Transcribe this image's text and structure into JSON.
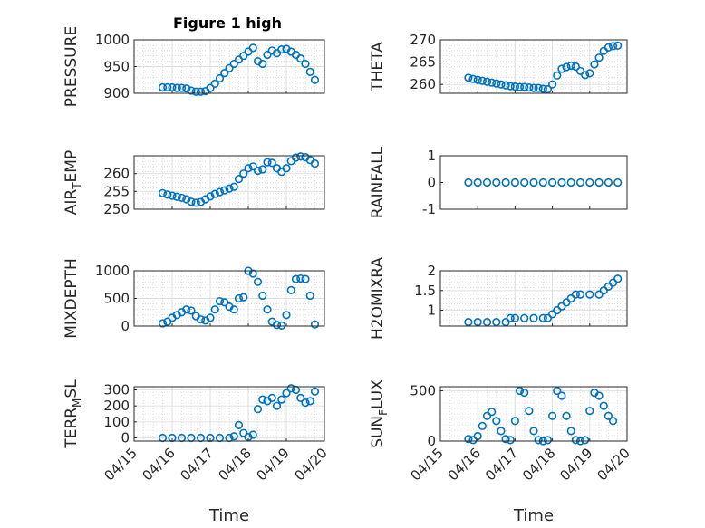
{
  "figure": {
    "title": "Figure 1 high",
    "marker_color": "#0072BD"
  },
  "chart_data": [
    {
      "type": "scatter",
      "ylabel": "PRESSURE",
      "xlabel": "",
      "xlim": [
        "04/15",
        "04/20"
      ],
      "ylim": [
        900,
        1000
      ],
      "yticks": [
        "900",
        "950",
        "1000"
      ],
      "grid": true,
      "points": [
        [
          "04/15 18:00",
          911
        ],
        [
          "04/15 21:00",
          911
        ],
        [
          "04/16 00:00",
          911
        ],
        [
          "04/16 03:00",
          910
        ],
        [
          "04/16 06:00",
          910
        ],
        [
          "04/16 09:00",
          909
        ],
        [
          "04/16 12:00",
          905
        ],
        [
          "04/16 15:00",
          903
        ],
        [
          "04/16 18:00",
          903
        ],
        [
          "04/16 21:00",
          904
        ],
        [
          "04/17 00:00",
          910
        ],
        [
          "04/17 03:00",
          918
        ],
        [
          "04/17 06:00",
          928
        ],
        [
          "04/17 09:00",
          938
        ],
        [
          "04/17 12:00",
          947
        ],
        [
          "04/17 15:00",
          955
        ],
        [
          "04/17 18:00",
          963
        ],
        [
          "04/17 21:00",
          970
        ],
        [
          "04/18 00:00",
          978
        ],
        [
          "04/18 03:00",
          985
        ],
        [
          "04/18 06:00",
          960
        ],
        [
          "04/18 09:00",
          955
        ],
        [
          "04/18 12:00",
          972
        ],
        [
          "04/18 15:00",
          980
        ],
        [
          "04/18 18:00",
          975
        ],
        [
          "04/18 21:00",
          982
        ],
        [
          "04/19 00:00",
          983
        ],
        [
          "04/19 03:00",
          978
        ],
        [
          "04/19 06:00",
          972
        ],
        [
          "04/19 09:00",
          965
        ],
        [
          "04/19 12:00",
          955
        ],
        [
          "04/19 15:00",
          940
        ],
        [
          "04/19 18:00",
          925
        ]
      ]
    },
    {
      "type": "scatter",
      "ylabel": "THETA",
      "xlabel": "",
      "xlim": [
        "04/15",
        "04/20"
      ],
      "ylim": [
        258,
        270
      ],
      "yticks": [
        "260",
        "265",
        "270"
      ],
      "grid": true,
      "points": [
        [
          "04/15 18:00",
          261.5
        ],
        [
          "04/15 21:00",
          261.2
        ],
        [
          "04/16 00:00",
          261.0
        ],
        [
          "04/16 03:00",
          260.8
        ],
        [
          "04/16 06:00",
          260.6
        ],
        [
          "04/16 09:00",
          260.4
        ],
        [
          "04/16 12:00",
          260.2
        ],
        [
          "04/16 15:00",
          260.0
        ],
        [
          "04/16 18:00",
          259.8
        ],
        [
          "04/16 21:00",
          259.6
        ],
        [
          "04/17 00:00",
          259.5
        ],
        [
          "04/17 03:00",
          259.4
        ],
        [
          "04/17 06:00",
          259.4
        ],
        [
          "04/17 09:00",
          259.3
        ],
        [
          "04/17 12:00",
          259.2
        ],
        [
          "04/17 15:00",
          259.2
        ],
        [
          "04/17 18:00",
          259.0
        ],
        [
          "04/17 21:00",
          258.9
        ],
        [
          "04/18 00:00",
          260.0
        ],
        [
          "04/18 03:00",
          262.0
        ],
        [
          "04/18 06:00",
          263.5
        ],
        [
          "04/18 09:00",
          263.9
        ],
        [
          "04/18 12:00",
          264.2
        ],
        [
          "04/18 15:00",
          264.0
        ],
        [
          "04/18 18:00",
          263.0
        ],
        [
          "04/18 21:00",
          262.1
        ],
        [
          "04/19 00:00",
          262.5
        ],
        [
          "04/19 03:00",
          264.5
        ],
        [
          "04/19 06:00",
          266.0
        ],
        [
          "04/19 09:00",
          267.5
        ],
        [
          "04/19 12:00",
          268.3
        ],
        [
          "04/19 15:00",
          268.6
        ],
        [
          "04/19 18:00",
          268.7
        ]
      ]
    },
    {
      "type": "scatter",
      "ylabel": "AIR_TEMP",
      "ylabel_main": "AIR",
      "ylabel_sub": "T",
      "ylabel_rest": "EMP",
      "xlabel": "",
      "xlim": [
        "04/15",
        "04/20"
      ],
      "ylim": [
        250,
        265
      ],
      "yticks": [
        "250",
        "255",
        "260"
      ],
      "grid": true,
      "points": [
        [
          "04/15 18:00",
          254.5
        ],
        [
          "04/15 21:00",
          254.1
        ],
        [
          "04/16 00:00",
          253.8
        ],
        [
          "04/16 03:00",
          253.5
        ],
        [
          "04/16 06:00",
          253.2
        ],
        [
          "04/16 09:00",
          252.8
        ],
        [
          "04/16 12:00",
          252.1
        ],
        [
          "04/16 15:00",
          251.8
        ],
        [
          "04/16 18:00",
          252.0
        ],
        [
          "04/16 21:00",
          252.8
        ],
        [
          "04/17 00:00",
          253.6
        ],
        [
          "04/17 03:00",
          254.3
        ],
        [
          "04/17 06:00",
          254.8
        ],
        [
          "04/17 09:00",
          255.3
        ],
        [
          "04/17 12:00",
          255.8
        ],
        [
          "04/17 15:00",
          256.3
        ],
        [
          "04/17 18:00",
          258.5
        ],
        [
          "04/17 21:00",
          260.0
        ],
        [
          "04/18 00:00",
          261.5
        ],
        [
          "04/18 03:00",
          262.0
        ],
        [
          "04/18 06:00",
          260.8
        ],
        [
          "04/18 09:00",
          261.2
        ],
        [
          "04/18 12:00",
          263.2
        ],
        [
          "04/18 15:00",
          263.0
        ],
        [
          "04/18 18:00",
          261.5
        ],
        [
          "04/18 21:00",
          260.5
        ],
        [
          "04/19 00:00",
          261.5
        ],
        [
          "04/19 03:00",
          263.5
        ],
        [
          "04/19 06:00",
          264.5
        ],
        [
          "04/19 09:00",
          264.8
        ],
        [
          "04/19 12:00",
          264.6
        ],
        [
          "04/19 15:00",
          263.8
        ],
        [
          "04/19 18:00",
          262.8
        ]
      ]
    },
    {
      "type": "scatter",
      "ylabel": "RAINFALL",
      "xlabel": "",
      "xlim": [
        "04/15",
        "04/20"
      ],
      "ylim": [
        -1,
        1
      ],
      "yticks": [
        "-1",
        "0",
        "1"
      ],
      "grid": false,
      "points": [
        [
          "04/15 18:00",
          0
        ],
        [
          "04/16 00:00",
          0
        ],
        [
          "04/16 06:00",
          0
        ],
        [
          "04/16 12:00",
          0
        ],
        [
          "04/16 18:00",
          0
        ],
        [
          "04/17 00:00",
          0
        ],
        [
          "04/17 06:00",
          0
        ],
        [
          "04/17 12:00",
          0
        ],
        [
          "04/17 18:00",
          0
        ],
        [
          "04/18 00:00",
          0
        ],
        [
          "04/18 06:00",
          0
        ],
        [
          "04/18 12:00",
          0
        ],
        [
          "04/18 18:00",
          0
        ],
        [
          "04/19 00:00",
          0
        ],
        [
          "04/19 06:00",
          0
        ],
        [
          "04/19 12:00",
          0
        ],
        [
          "04/19 18:00",
          0
        ]
      ]
    },
    {
      "type": "scatter",
      "ylabel": "MIXDEPTH",
      "xlabel": "",
      "xlim": [
        "04/15",
        "04/20"
      ],
      "ylim": [
        0,
        1000
      ],
      "yticks": [
        "0",
        "500",
        "1000"
      ],
      "grid": true,
      "points": [
        [
          "04/15 18:00",
          50
        ],
        [
          "04/15 21:00",
          80
        ],
        [
          "04/16 00:00",
          150
        ],
        [
          "04/16 03:00",
          200
        ],
        [
          "04/16 06:00",
          250
        ],
        [
          "04/16 09:00",
          300
        ],
        [
          "04/16 12:00",
          280
        ],
        [
          "04/16 15:00",
          180
        ],
        [
          "04/16 18:00",
          120
        ],
        [
          "04/16 21:00",
          100
        ],
        [
          "04/17 00:00",
          150
        ],
        [
          "04/17 03:00",
          300
        ],
        [
          "04/17 06:00",
          450
        ],
        [
          "04/17 09:00",
          430
        ],
        [
          "04/17 12:00",
          350
        ],
        [
          "04/17 15:00",
          300
        ],
        [
          "04/17 18:00",
          500
        ],
        [
          "04/17 21:00",
          520
        ],
        [
          "04/18 00:00",
          1000
        ],
        [
          "04/18 03:00",
          950
        ],
        [
          "04/18 06:00",
          800
        ],
        [
          "04/18 09:00",
          550
        ],
        [
          "04/18 12:00",
          300
        ],
        [
          "04/18 15:00",
          80
        ],
        [
          "04/18 18:00",
          20
        ],
        [
          "04/18 21:00",
          10
        ],
        [
          "04/19 00:00",
          200
        ],
        [
          "04/19 03:00",
          650
        ],
        [
          "04/19 06:00",
          850
        ],
        [
          "04/19 09:00",
          860
        ],
        [
          "04/19 12:00",
          850
        ],
        [
          "04/19 15:00",
          550
        ],
        [
          "04/19 18:00",
          30
        ]
      ]
    },
    {
      "type": "scatter",
      "ylabel": "H2OMIXRA",
      "xlabel": "",
      "xlim": [
        "04/15",
        "04/20"
      ],
      "ylim": [
        0.6,
        2
      ],
      "yticks": [
        "1",
        "1.5",
        "2"
      ],
      "grid": true,
      "points": [
        [
          "04/15 18:00",
          0.7
        ],
        [
          "04/16 00:00",
          0.7
        ],
        [
          "04/16 06:00",
          0.7
        ],
        [
          "04/16 12:00",
          0.7
        ],
        [
          "04/16 18:00",
          0.7
        ],
        [
          "04/16 21:00",
          0.8
        ],
        [
          "04/17 00:00",
          0.8
        ],
        [
          "04/17 06:00",
          0.8
        ],
        [
          "04/17 12:00",
          0.8
        ],
        [
          "04/17 18:00",
          0.8
        ],
        [
          "04/17 21:00",
          0.8
        ],
        [
          "04/18 00:00",
          0.9
        ],
        [
          "04/18 03:00",
          1.0
        ],
        [
          "04/18 06:00",
          1.1
        ],
        [
          "04/18 09:00",
          1.2
        ],
        [
          "04/18 12:00",
          1.3
        ],
        [
          "04/18 15:00",
          1.4
        ],
        [
          "04/18 18:00",
          1.4
        ],
        [
          "04/19 00:00",
          1.4
        ],
        [
          "04/19 06:00",
          1.4
        ],
        [
          "04/19 09:00",
          1.5
        ],
        [
          "04/19 12:00",
          1.6
        ],
        [
          "04/19 15:00",
          1.7
        ],
        [
          "04/19 18:00",
          1.8
        ]
      ]
    },
    {
      "type": "scatter",
      "ylabel": "TERR_MSL",
      "ylabel_main": "TERR",
      "ylabel_sub": "M",
      "ylabel_rest": "SL",
      "xlabel": "Time",
      "xlim": [
        "04/15",
        "04/20"
      ],
      "ylim": [
        -20,
        320
      ],
      "yticks": [
        "0",
        "100",
        "200",
        "300"
      ],
      "xticks": [
        "04/15",
        "04/16",
        "04/17",
        "04/18",
        "04/19",
        "04/20"
      ],
      "grid": true,
      "points": [
        [
          "04/15 18:00",
          0
        ],
        [
          "04/16 00:00",
          0
        ],
        [
          "04/16 06:00",
          0
        ],
        [
          "04/16 12:00",
          0
        ],
        [
          "04/16 18:00",
          0
        ],
        [
          "04/17 00:00",
          0
        ],
        [
          "04/17 06:00",
          0
        ],
        [
          "04/17 12:00",
          0
        ],
        [
          "04/17 15:00",
          10
        ],
        [
          "04/17 18:00",
          80
        ],
        [
          "04/17 21:00",
          30
        ],
        [
          "04/18 00:00",
          5
        ],
        [
          "04/18 03:00",
          20
        ],
        [
          "04/18 06:00",
          180
        ],
        [
          "04/18 09:00",
          240
        ],
        [
          "04/18 12:00",
          230
        ],
        [
          "04/18 15:00",
          250
        ],
        [
          "04/18 18:00",
          200
        ],
        [
          "04/18 21:00",
          240
        ],
        [
          "04/19 00:00",
          280
        ],
        [
          "04/19 03:00",
          310
        ],
        [
          "04/19 06:00",
          300
        ],
        [
          "04/19 09:00",
          250
        ],
        [
          "04/19 12:00",
          220
        ],
        [
          "04/19 15:00",
          230
        ],
        [
          "04/19 18:00",
          290
        ]
      ]
    },
    {
      "type": "scatter",
      "ylabel": "SUN_FLUX",
      "ylabel_main": "SUN",
      "ylabel_sub": "F",
      "ylabel_rest": "LUX",
      "xlabel": "Time",
      "xlim": [
        "04/15",
        "04/20"
      ],
      "ylim": [
        0,
        540
      ],
      "yticks": [
        "0",
        "500"
      ],
      "xticks": [
        "04/15",
        "04/16",
        "04/17",
        "04/18",
        "04/19",
        "04/20"
      ],
      "grid": true,
      "points": [
        [
          "04/15 18:00",
          20
        ],
        [
          "04/15 21:00",
          10
        ],
        [
          "04/16 00:00",
          50
        ],
        [
          "04/16 03:00",
          150
        ],
        [
          "04/16 06:00",
          250
        ],
        [
          "04/16 09:00",
          290
        ],
        [
          "04/16 12:00",
          200
        ],
        [
          "04/16 15:00",
          100
        ],
        [
          "04/16 18:00",
          20
        ],
        [
          "04/16 21:00",
          10
        ],
        [
          "04/17 00:00",
          200
        ],
        [
          "04/17 03:00",
          500
        ],
        [
          "04/17 06:00",
          480
        ],
        [
          "04/17 09:00",
          300
        ],
        [
          "04/17 12:00",
          100
        ],
        [
          "04/17 15:00",
          10
        ],
        [
          "04/17 18:00",
          0
        ],
        [
          "04/17 21:00",
          10
        ],
        [
          "04/18 00:00",
          250
        ],
        [
          "04/18 03:00",
          500
        ],
        [
          "04/18 06:00",
          450
        ],
        [
          "04/18 09:00",
          250
        ],
        [
          "04/18 12:00",
          100
        ],
        [
          "04/18 15:00",
          10
        ],
        [
          "04/18 18:00",
          0
        ],
        [
          "04/18 21:00",
          10
        ],
        [
          "04/19 00:00",
          300
        ],
        [
          "04/19 03:00",
          480
        ],
        [
          "04/19 06:00",
          450
        ],
        [
          "04/19 09:00",
          350
        ],
        [
          "04/19 12:00",
          250
        ],
        [
          "04/19 15:00",
          200
        ]
      ]
    }
  ]
}
